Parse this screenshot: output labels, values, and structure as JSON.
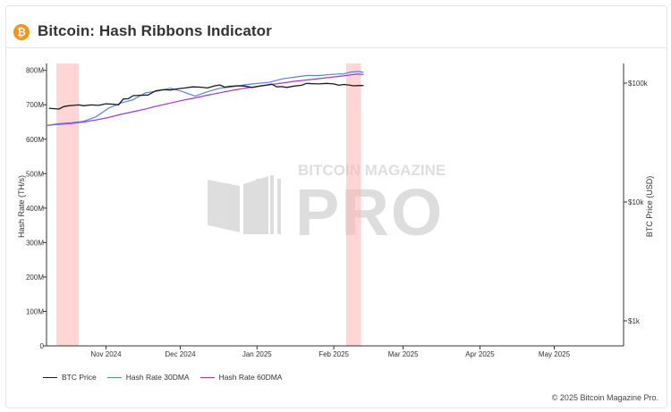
{
  "header": {
    "icon": "bitcoin-icon",
    "icon_glyph": "₿",
    "title": "Bitcoin: Hash Ribbons Indicator"
  },
  "watermark": {
    "line1": "BITCOIN MAGAZINE",
    "line2": "PRO"
  },
  "legend": {
    "btc_price": "BTC Price",
    "hash_30": "Hash Rate 30DMA",
    "hash_60": "Hash Rate 60DMA"
  },
  "colors": {
    "btc_price": "#1a1a1a",
    "hash_30": "#5b7fe8",
    "hash_60": "#a333e0",
    "capitulation": "#ffb3b3"
  },
  "copyright": "© 2025 Bitcoin Magazine Pro.",
  "chart_data": {
    "type": "line",
    "xlabel": "",
    "ylabel": "Hash Rate (TH/s)",
    "y2label": "BTC Price (USD)",
    "x_range": [
      "2024-10-08",
      "2025-05-29"
    ],
    "ylim": [
      0,
      820
    ],
    "y_ticks": [
      0,
      100,
      200,
      300,
      400,
      500,
      600,
      700,
      800
    ],
    "y_tick_labels": [
      "0",
      "100M",
      "200M",
      "300M",
      "400M",
      "500M",
      "600M",
      "700M",
      "800M"
    ],
    "y2_scale": "log",
    "y2_ticks": [
      1000,
      10000,
      100000
    ],
    "y2_tick_labels": [
      "$1k",
      "$10k",
      "$100k"
    ],
    "x_ticks": [
      "2024-11-01",
      "2024-12-01",
      "2025-01-01",
      "2025-02-01",
      "2025-03-01",
      "2025-04-01",
      "2025-05-01"
    ],
    "x_tick_labels": [
      "Nov 2024",
      "Dec 2024",
      "Jan 2025",
      "Feb 2025",
      "Mar 2025",
      "Apr 2025",
      "May 2025"
    ],
    "capitulation_bands": [
      {
        "start": "2024-10-12",
        "end": "2024-10-21"
      },
      {
        "start": "2025-02-06",
        "end": "2025-02-12"
      }
    ],
    "series": [
      {
        "name": "BTC Price",
        "axis": "right",
        "x": [
          "2024-10-09",
          "2024-10-11",
          "2024-10-13",
          "2024-10-15",
          "2024-10-17",
          "2024-10-19",
          "2024-10-21",
          "2024-10-23",
          "2024-10-26",
          "2024-10-29",
          "2024-11-01",
          "2024-11-04",
          "2024-11-06",
          "2024-11-08",
          "2024-11-10",
          "2024-11-12",
          "2024-11-15",
          "2024-11-18",
          "2024-11-21",
          "2024-11-24",
          "2024-11-27",
          "2024-11-30",
          "2024-12-03",
          "2024-12-06",
          "2024-12-09",
          "2024-12-12",
          "2024-12-15",
          "2024-12-17",
          "2024-12-19",
          "2024-12-21",
          "2024-12-24",
          "2024-12-27",
          "2024-12-30",
          "2025-01-02",
          "2025-01-05",
          "2025-01-07",
          "2025-01-09",
          "2025-01-11",
          "2025-01-13",
          "2025-01-16",
          "2025-01-19",
          "2025-01-21",
          "2025-01-23",
          "2025-01-26",
          "2025-01-29",
          "2025-02-01",
          "2025-02-03",
          "2025-02-05",
          "2025-02-07",
          "2025-02-09",
          "2025-02-11",
          "2025-02-13"
        ],
        "values": [
          61500,
          61000,
          60500,
          63500,
          64500,
          65000,
          65500,
          64500,
          65500,
          65000,
          67000,
          66500,
          65500,
          73500,
          74000,
          78500,
          79000,
          79500,
          86000,
          88000,
          87500,
          89500,
          91000,
          93000,
          92500,
          91000,
          95000,
          96500,
          92500,
          94000,
          95000,
          94500,
          92000,
          94500,
          96500,
          98000,
          93000,
          93500,
          92000,
          94500,
          96000,
          99500,
          99000,
          98500,
          99500,
          98500,
          96000,
          97500,
          96500,
          95000,
          95500,
          95500
        ]
      },
      {
        "name": "Hash Rate 30DMA",
        "axis": "left",
        "x": [
          "2024-10-08",
          "2024-10-13",
          "2024-10-18",
          "2024-10-23",
          "2024-10-28",
          "2024-11-02",
          "2024-11-07",
          "2024-11-12",
          "2024-11-17",
          "2024-11-22",
          "2024-11-27",
          "2024-12-02",
          "2024-12-07",
          "2024-12-12",
          "2024-12-17",
          "2024-12-22",
          "2024-12-27",
          "2025-01-01",
          "2025-01-06",
          "2025-01-11",
          "2025-01-16",
          "2025-01-21",
          "2025-01-26",
          "2025-01-31",
          "2025-02-05",
          "2025-02-08",
          "2025-02-11",
          "2025-02-13"
        ],
        "values": [
          640,
          645,
          648,
          652,
          665,
          690,
          705,
          715,
          735,
          740,
          748,
          738,
          725,
          738,
          748,
          752,
          758,
          762,
          765,
          775,
          780,
          785,
          785,
          788,
          790,
          795,
          797,
          794
        ]
      },
      {
        "name": "Hash Rate 60DMA",
        "axis": "left",
        "x": [
          "2024-10-08",
          "2024-10-13",
          "2024-10-18",
          "2024-10-23",
          "2024-10-28",
          "2024-11-02",
          "2024-11-07",
          "2024-11-12",
          "2024-11-17",
          "2024-11-22",
          "2024-11-27",
          "2024-12-02",
          "2024-12-07",
          "2024-12-12",
          "2024-12-17",
          "2024-12-22",
          "2024-12-27",
          "2025-01-01",
          "2025-01-06",
          "2025-01-11",
          "2025-01-16",
          "2025-01-21",
          "2025-01-26",
          "2025-01-31",
          "2025-02-05",
          "2025-02-08",
          "2025-02-11",
          "2025-02-13"
        ],
        "values": [
          640,
          643,
          646,
          650,
          656,
          663,
          672,
          680,
          688,
          697,
          705,
          713,
          720,
          728,
          735,
          742,
          748,
          753,
          758,
          763,
          768,
          772,
          776,
          780,
          784,
          787,
          789,
          788
        ]
      }
    ]
  }
}
